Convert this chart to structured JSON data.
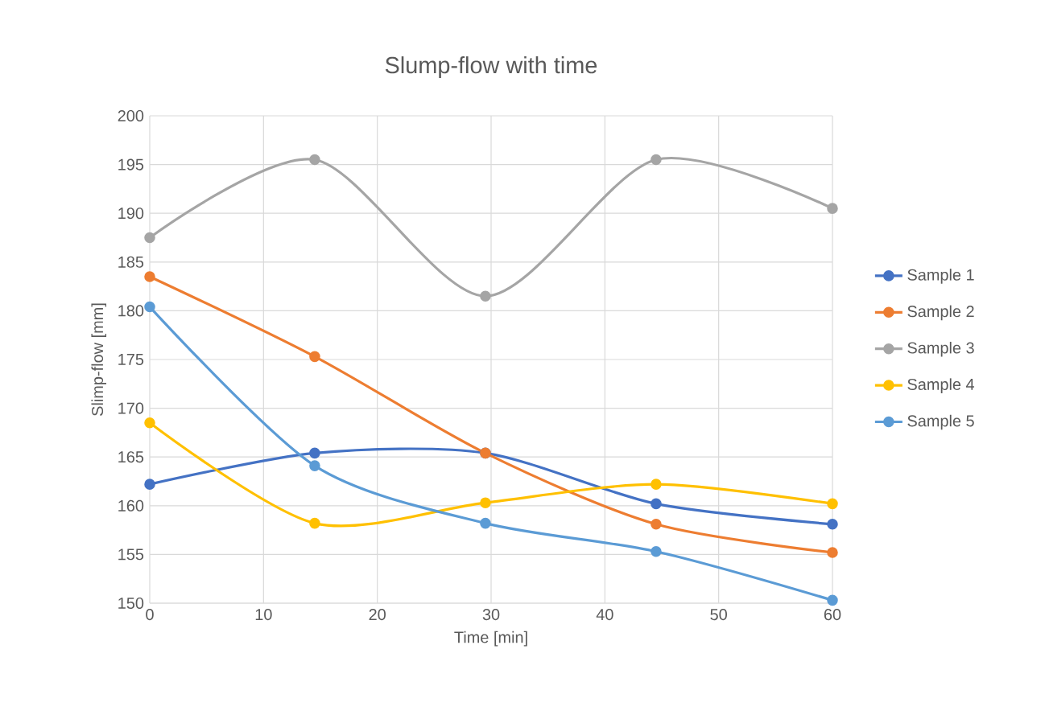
{
  "chart_data": {
    "type": "line",
    "title": "Slump-flow with time",
    "xlabel": "Time [min]",
    "ylabel": "Slimp-flow [mm]",
    "x": [
      0,
      14.5,
      29.5,
      44.5,
      60
    ],
    "series": [
      {
        "name": "Sample 1",
        "color": "#4472c4",
        "values": [
          162.2,
          165.4,
          165.4,
          160.2,
          158.1
        ]
      },
      {
        "name": "Sample 2",
        "color": "#ed7d31",
        "values": [
          183.5,
          175.3,
          165.4,
          158.1,
          155.2
        ]
      },
      {
        "name": "Sample 3",
        "color": "#a5a5a5",
        "values": [
          187.5,
          195.5,
          181.5,
          195.5,
          190.5
        ]
      },
      {
        "name": "Sample 4",
        "color": "#ffc000",
        "values": [
          168.5,
          158.2,
          160.3,
          162.2,
          160.2
        ]
      },
      {
        "name": "Sample 5",
        "color": "#5b9bd5",
        "values": [
          180.4,
          164.1,
          158.2,
          155.3,
          150.3
        ]
      }
    ],
    "xlim": [
      0,
      60
    ],
    "xticks": [
      0,
      10,
      20,
      30,
      40,
      50,
      60
    ],
    "ylim": [
      150,
      200
    ],
    "yticks": [
      150,
      155,
      160,
      165,
      170,
      175,
      180,
      185,
      190,
      195,
      200
    ],
    "grid": true,
    "legend": "right",
    "marker": "circle",
    "line_style": "solid"
  }
}
